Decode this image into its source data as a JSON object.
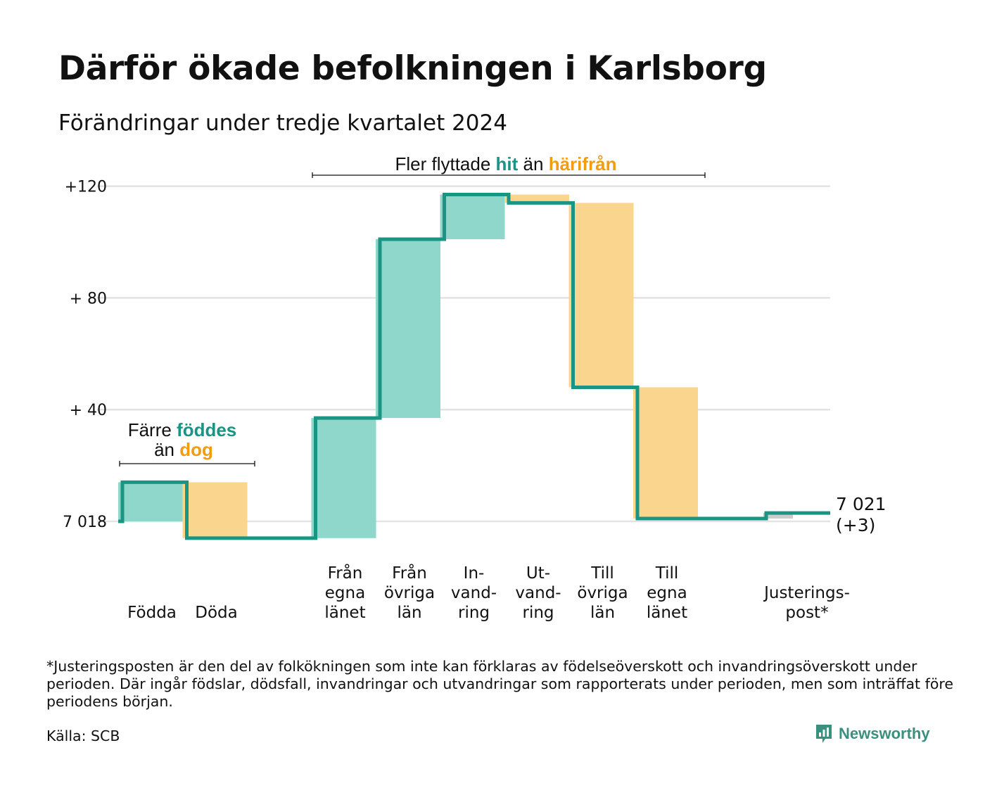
{
  "header": {
    "title": "Därför ökade befolkningen i Karlsborg",
    "subtitle": "Förändringar under tredje kvartalet 2024"
  },
  "colors": {
    "increase": "#8fd6cb",
    "decrease": "#fad58d",
    "adjustment": "#cccccc",
    "line": "#1a9483",
    "teal_text": "#1a9483",
    "orange_text": "#f39c12",
    "grid": "#e3e3e3",
    "logo": "#3b8f7e"
  },
  "chart_data": {
    "type": "waterfall",
    "base": 7018,
    "ylim": [
      -6,
      122
    ],
    "yticks": [
      {
        "value": 0,
        "label": "7 018"
      },
      {
        "value": 40,
        "label": "+ 40"
      },
      {
        "value": 80,
        "label": "+ 80"
      },
      {
        "value": 120,
        "label": "+120"
      }
    ],
    "steps": [
      {
        "label": "Födda",
        "lines": [
          "Födda"
        ],
        "delta": 14,
        "kind": "increase",
        "slot": 0
      },
      {
        "label": "Döda",
        "lines": [
          "Döda"
        ],
        "delta": -20,
        "kind": "decrease",
        "slot": 1
      },
      {
        "label": "Från egna länet",
        "lines": [
          "Från",
          "egna",
          "länet"
        ],
        "delta": 43,
        "kind": "increase",
        "slot": 3
      },
      {
        "label": "Från övriga län",
        "lines": [
          "Från",
          "övriga",
          "län"
        ],
        "delta": 64,
        "kind": "increase",
        "slot": 4
      },
      {
        "label": "In- vand- ring",
        "lines": [
          "In-",
          "vand-",
          "ring"
        ],
        "delta": 16,
        "kind": "increase",
        "slot": 5
      },
      {
        "label": "Ut- vand- ring",
        "lines": [
          "Ut-",
          "vand-",
          "ring"
        ],
        "delta": -3,
        "kind": "decrease",
        "slot": 6
      },
      {
        "label": "Till övriga län",
        "lines": [
          "Till",
          "övriga",
          "län"
        ],
        "delta": -66,
        "kind": "decrease",
        "slot": 7
      },
      {
        "label": "Till egna länet",
        "lines": [
          "Till",
          "egna",
          "länet"
        ],
        "delta": -47,
        "kind": "decrease",
        "slot": 8
      },
      {
        "label": "Justerings- post*",
        "lines": [
          "Justerings-",
          "post*"
        ],
        "delta": 2,
        "kind": "adjustment",
        "slot": 10
      }
    ],
    "end_label": {
      "value": "7 021",
      "change": "(+3)"
    },
    "annotations": [
      {
        "id": "birth",
        "parts": [
          [
            "Färre ",
            "plain"
          ],
          [
            "föddes",
            "teal"
          ]
        ],
        "parts2": [
          [
            "än ",
            "plain"
          ],
          [
            "dog",
            "orange"
          ]
        ]
      },
      {
        "id": "move",
        "parts": [
          [
            "Fler flyttade ",
            "plain"
          ],
          [
            "hit",
            "teal"
          ],
          [
            " än ",
            "plain"
          ],
          [
            "härifrån",
            "orange"
          ]
        ]
      }
    ]
  },
  "footer": {
    "footnote": "*Justeringsposten är den del av folkökningen som inte kan förklaras av födelseöverskott och invandringsöverskott under perioden. Där ingår födslar, dödsfall, invandringar och utvandringar som rapporterats under perioden, men som inträffat före periodens början.",
    "source": "Källa: SCB",
    "logo_text": "Newsworthy",
    "logo_icon": "newsworthy-chart-bubble-icon"
  }
}
